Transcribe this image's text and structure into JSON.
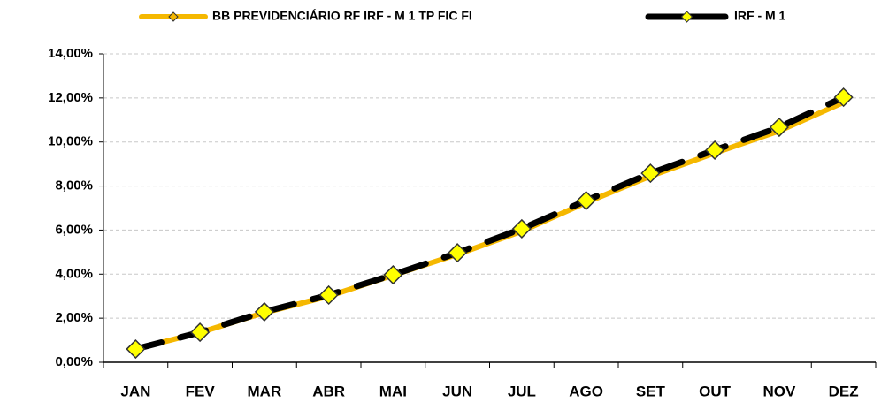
{
  "chart_data": {
    "type": "line",
    "categories": [
      "JAN",
      "FEV",
      "MAR",
      "ABR",
      "MAI",
      "JUN",
      "JUL",
      "AGO",
      "SET",
      "OUT",
      "NOV",
      "DEZ"
    ],
    "series": [
      {
        "name": "BB PREVIDENCIÁRIO RF IRF - M 1 TP FIC FI",
        "color": "#f5b800",
        "values": [
          0.6,
          1.35,
          2.25,
          3.0,
          3.95,
          4.9,
          5.95,
          7.25,
          8.45,
          9.5,
          10.5,
          11.8
        ]
      },
      {
        "name": "IRF - M 1",
        "color": "#000000",
        "marker_color": "#ffff00",
        "values": [
          0.6,
          1.36,
          2.29,
          3.05,
          3.97,
          4.97,
          6.06,
          7.34,
          8.58,
          9.63,
          10.67,
          12.03
        ]
      }
    ],
    "ylim": [
      0,
      14
    ],
    "yticks": [
      {
        "value": 0,
        "label": "0,00%"
      },
      {
        "value": 2,
        "label": "2,00%"
      },
      {
        "value": 4,
        "label": "4,00%"
      },
      {
        "value": 6,
        "label": "6,00%"
      },
      {
        "value": 8,
        "label": "8,00%"
      },
      {
        "value": 10,
        "label": "10,00%"
      },
      {
        "value": 12,
        "label": "12,00%"
      },
      {
        "value": 14,
        "label": "14,00%"
      }
    ],
    "grid": true,
    "legend": "top"
  }
}
